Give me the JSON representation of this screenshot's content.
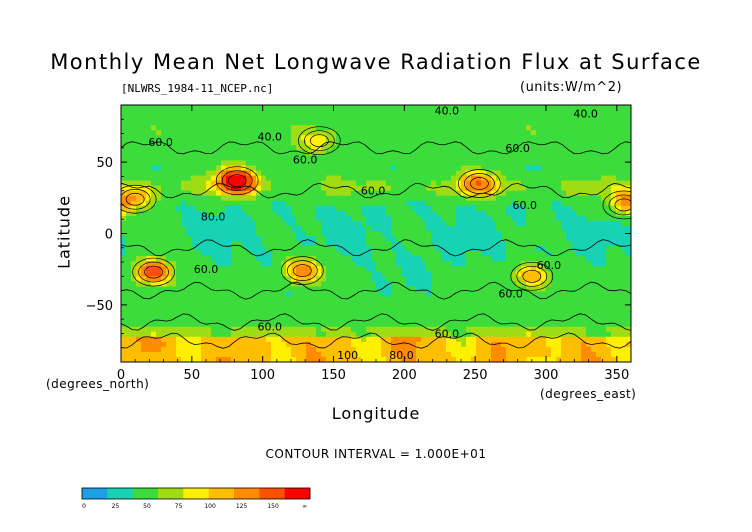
{
  "chart_data": {
    "type": "heatmap",
    "title": "Monthly Mean Net Longwave Radiation Flux at Surface",
    "subtitle": "[NLWRS_1984-11_NCEP.nc]",
    "units": "(units:W/m^2)",
    "xlabel": "Longitude",
    "ylabel": "Latitude",
    "xlabel_unit": "(degrees_east)",
    "ylabel_unit": "(degrees_north)",
    "contour_interval": "CONTOUR INTERVAL = 1.000E+01",
    "xlim": [
      0,
      360
    ],
    "ylim": [
      -90,
      90
    ],
    "x_ticks": [
      0,
      50,
      100,
      150,
      200,
      250,
      300,
      350
    ],
    "y_ticks": [
      -50,
      0,
      50
    ],
    "colorbar": {
      "levels": [
        "0",
        "25",
        "50",
        "75",
        "100",
        "125",
        "150",
        "∞"
      ],
      "colors": [
        "#1ea0e6",
        "#18d2b4",
        "#3cdc3c",
        "#a0dc14",
        "#fff000",
        "#ffbe00",
        "#ff8c00",
        "#ff5000",
        "#ff0000"
      ]
    },
    "contour_labels": [
      {
        "text": "40.0",
        "lon": 230,
        "lat": 86
      },
      {
        "text": "40.0",
        "lon": 328,
        "lat": 84
      },
      {
        "text": "60.0",
        "lon": 28,
        "lat": 64
      },
      {
        "text": "40.0",
        "lon": 105,
        "lat": 68
      },
      {
        "text": "60.0",
        "lon": 130,
        "lat": 52
      },
      {
        "text": "60.0",
        "lon": 280,
        "lat": 60
      },
      {
        "text": "60.0",
        "lon": 178,
        "lat": 30
      },
      {
        "text": "80.0",
        "lon": 65,
        "lat": 12
      },
      {
        "text": "60.0",
        "lon": 285,
        "lat": 20
      },
      {
        "text": "60.0",
        "lon": 60,
        "lat": -25
      },
      {
        "text": "60.0",
        "lon": 302,
        "lat": -22
      },
      {
        "text": "60.0",
        "lon": 275,
        "lat": -42
      },
      {
        "text": "60.0",
        "lon": 105,
        "lat": -65
      },
      {
        "text": "60.0",
        "lon": 230,
        "lat": -70
      },
      {
        "text": "100",
        "lon": 160,
        "lat": -85
      },
      {
        "text": "80.0",
        "lon": 198,
        "lat": -85
      }
    ],
    "field_description": {
      "background_flux": 60,
      "hotspots": [
        {
          "lon": 23,
          "lat": -27,
          "flux": 150
        },
        {
          "lon": 128,
          "lat": -26,
          "flux": 130
        },
        {
          "lon": 82,
          "lat": 37,
          "flux": 160
        },
        {
          "lon": 253,
          "lat": 35,
          "flux": 110
        },
        {
          "lon": 290,
          "lat": -30,
          "flux": 120
        },
        {
          "lon": 10,
          "lat": 24,
          "flux": 105
        },
        {
          "lon": 355,
          "lat": 20,
          "flux": 100
        },
        {
          "lon": 140,
          "lat": 65,
          "flux": 95
        }
      ]
    }
  }
}
